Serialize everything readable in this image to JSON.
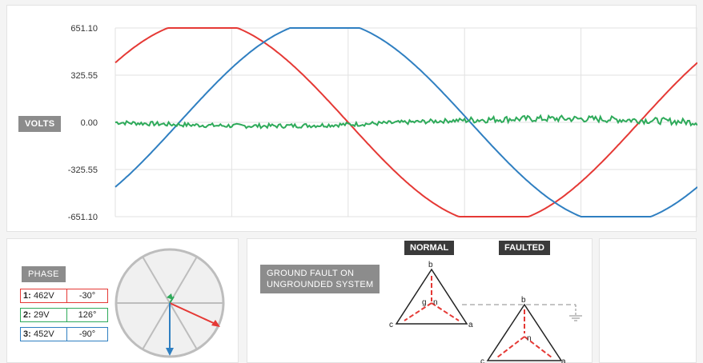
{
  "colors": {
    "phase1": "#e53935",
    "phase2": "#2eaa5a",
    "phase3": "#2f7fc1",
    "tag_bg": "#8c8c8c",
    "tag_dark_bg": "#3a3a3a"
  },
  "waveform": {
    "label": "VOLTS",
    "y_ticks": [
      "651.10",
      "325.55",
      "0.00",
      "-325.55",
      "-651.10"
    ],
    "ylim": [
      -651.1,
      651.1
    ]
  },
  "phase": {
    "label": "PHASE",
    "readouts": [
      {
        "index": "1:",
        "magnitude": "462V",
        "angle": "-30°",
        "color": "#e53935"
      },
      {
        "index": "2:",
        "magnitude": "29V",
        "angle": "126°",
        "color": "#2eaa5a"
      },
      {
        "index": "3:",
        "magnitude": "452V",
        "angle": "-90°",
        "color": "#2f7fc1"
      }
    ],
    "phasor_icon": "phasor-diagram-icon"
  },
  "fault": {
    "label_line1": "GROUND FAULT ON",
    "label_line2": "UNGROUNDED SYSTEM",
    "normal_label": "NORMAL",
    "faulted_label": "FAULTED",
    "normal_nodes": {
      "top": "b",
      "left": "c",
      "right": "a",
      "center": "n",
      "ground": "g"
    },
    "faulted_nodes": {
      "top": "b",
      "left": "c",
      "right": "a",
      "center": "n"
    }
  }
}
